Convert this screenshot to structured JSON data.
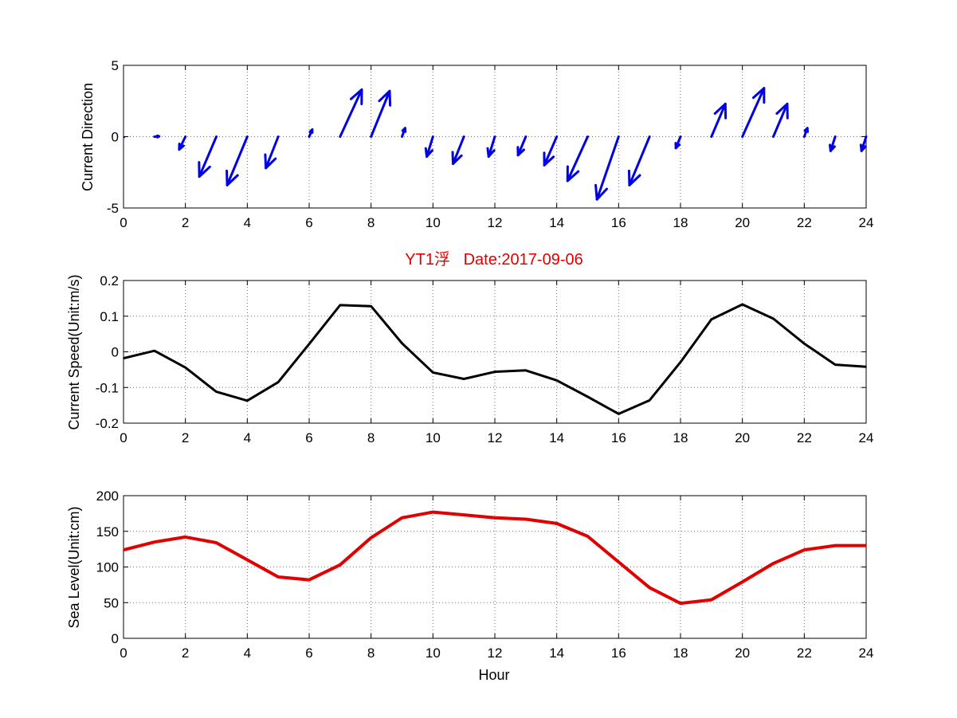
{
  "title": "YT1浮   Date:2017-09-06",
  "colors": {
    "title": "#e00000",
    "direction": "#0000e6",
    "speed": "#000000",
    "sea_level": "#e00000"
  },
  "chart_data": [
    {
      "type": "quiver",
      "ylabel": "Current Direction",
      "xlabel": "",
      "xlim": [
        0,
        24
      ],
      "ylim": [
        -5,
        5
      ],
      "xticks": [
        0,
        2,
        4,
        6,
        8,
        10,
        12,
        14,
        16,
        18,
        20,
        22,
        24
      ],
      "yticks": [
        -5,
        0,
        5
      ],
      "grid": true,
      "x": [
        0,
        1,
        2,
        3,
        4,
        5,
        6,
        7,
        8,
        9,
        10,
        11,
        12,
        13,
        14,
        15,
        16,
        17,
        18,
        19,
        20,
        21,
        22,
        23,
        24
      ],
      "u": [
        0,
        0.15,
        -0.2,
        -0.55,
        -0.65,
        -0.4,
        0.1,
        0.7,
        0.6,
        0.1,
        -0.2,
        -0.35,
        -0.2,
        -0.25,
        -0.4,
        -0.65,
        -0.7,
        -0.65,
        -0.15,
        0.45,
        0.7,
        0.45,
        0.1,
        -0.15,
        -0.15
      ],
      "v": [
        0,
        0.02,
        -0.9,
        -2.8,
        -3.4,
        -2.2,
        0.5,
        3.3,
        3.2,
        0.6,
        -1.4,
        -1.9,
        -1.4,
        -1.3,
        -2.0,
        -3.1,
        -4.4,
        -3.4,
        -0.8,
        2.3,
        3.4,
        2.3,
        0.6,
        -1.0,
        -1.0
      ]
    },
    {
      "type": "line",
      "ylabel": "Current Speed(Unit:m/s)",
      "xlabel": "",
      "xlim": [
        0,
        24
      ],
      "ylim": [
        -0.2,
        0.2
      ],
      "xticks": [
        0,
        2,
        4,
        6,
        8,
        10,
        12,
        14,
        16,
        18,
        20,
        22,
        24
      ],
      "yticks": [
        -0.2,
        -0.1,
        0,
        0.1,
        0.2
      ],
      "grid": true,
      "x": [
        0,
        1,
        2,
        3,
        4,
        5,
        6,
        7,
        8,
        9,
        10,
        11,
        12,
        13,
        14,
        15,
        16,
        17,
        18,
        19,
        20,
        21,
        22,
        23,
        24
      ],
      "values": [
        -0.018,
        0.003,
        -0.044,
        -0.112,
        -0.137,
        -0.085,
        0.022,
        0.131,
        0.128,
        0.024,
        -0.058,
        -0.076,
        -0.056,
        -0.052,
        -0.08,
        -0.126,
        -0.174,
        -0.136,
        -0.029,
        0.091,
        0.133,
        0.093,
        0.023,
        -0.036,
        -0.042
      ]
    },
    {
      "type": "line",
      "ylabel": "Sea Level(Unit:cm)",
      "xlabel": "Hour",
      "xlim": [
        0,
        24
      ],
      "ylim": [
        0,
        200
      ],
      "xticks": [
        0,
        2,
        4,
        6,
        8,
        10,
        12,
        14,
        16,
        18,
        20,
        22,
        24
      ],
      "yticks": [
        0,
        50,
        100,
        150,
        200
      ],
      "grid": true,
      "x": [
        0,
        1,
        2,
        3,
        4,
        5,
        6,
        7,
        8,
        9,
        10,
        11,
        12,
        13,
        14,
        15,
        16,
        17,
        18,
        19,
        20,
        21,
        22,
        23,
        24
      ],
      "values": [
        124,
        135,
        142,
        134,
        110,
        86,
        82,
        103,
        141,
        169,
        177,
        173,
        169,
        167,
        161,
        143,
        107,
        71,
        49,
        54,
        79,
        105,
        124,
        130,
        130
      ]
    }
  ]
}
